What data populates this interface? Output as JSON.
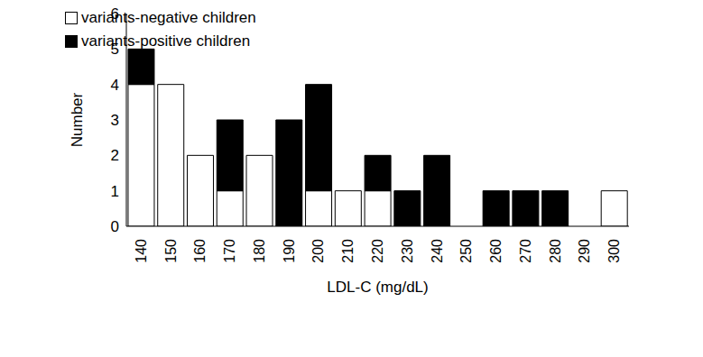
{
  "chart_data": {
    "type": "bar",
    "stacked": true,
    "x_label": "LDL-C (mg/dL)",
    "y_label": "Number",
    "categories": [
      "140",
      "150",
      "160",
      "170",
      "180",
      "190",
      "200",
      "210",
      "220",
      "230",
      "240",
      "250",
      "260",
      "270",
      "280",
      "290",
      "300"
    ],
    "series": [
      {
        "name": "variants-negative children",
        "color": "#ffffff",
        "values": [
          4,
          4,
          2,
          1,
          2,
          0,
          1,
          1,
          1,
          0,
          0,
          0,
          0,
          0,
          0,
          0,
          1
        ]
      },
      {
        "name": "variants-positive children",
        "color": "#000000",
        "values": [
          1,
          0,
          0,
          2,
          0,
          3,
          3,
          0,
          1,
          1,
          2,
          0,
          1,
          1,
          1,
          0,
          0
        ]
      }
    ],
    "ylim": [
      0,
      6
    ],
    "yticks": [
      0,
      1,
      2,
      3,
      4,
      5,
      6
    ],
    "grid": false,
    "legend": "upper right"
  }
}
